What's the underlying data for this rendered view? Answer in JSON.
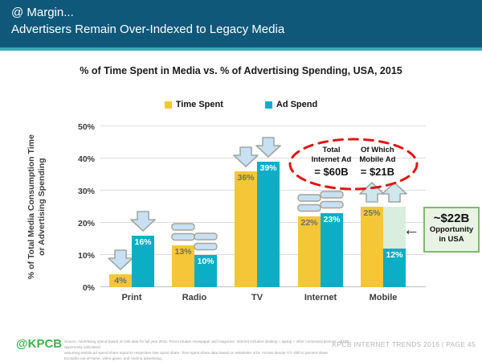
{
  "header": {
    "line1": "@ Margin...",
    "line2": "Advertisers Remain Over-Indexed to Legacy Media"
  },
  "chart_data": {
    "type": "bar",
    "title": "% of Time Spent in Media vs. % of Advertising Spending, USA, 2015",
    "ylabel_line1": "% of Total Media Consumption Time",
    "ylabel_line2": "or Advertising Spending",
    "ylim": [
      0,
      50
    ],
    "yticks": [
      "0%",
      "10%",
      "20%",
      "30%",
      "40%",
      "50%"
    ],
    "grid": true,
    "legend_position": "top-center",
    "categories": [
      "Print",
      "Radio",
      "TV",
      "Internet",
      "Mobile"
    ],
    "series": [
      {
        "name": "Time Spent",
        "color": "#F5C637",
        "label_color": "#6E6E6E",
        "values": [
          4,
          13,
          36,
          22,
          25
        ],
        "labels": [
          "4%",
          "13%",
          "36%",
          "22%",
          "25%"
        ]
      },
      {
        "name": "Ad Spend",
        "color": "#0CAEC5",
        "label_color": "#FFFFFF",
        "values": [
          16,
          10,
          39,
          23,
          12
        ],
        "labels": [
          "16%",
          "10%",
          "39%",
          "23%",
          "12%"
        ]
      }
    ],
    "yoy_trends": [
      [
        "down",
        "down"
      ],
      [
        "equal",
        "equal"
      ],
      [
        "down",
        "down"
      ],
      [
        "equal",
        "equal"
      ],
      [
        "up",
        "up"
      ]
    ],
    "mobile_opportunity_extension": {
      "category": "Mobile",
      "from": 12,
      "to": 25,
      "color": "#D9EEDF"
    },
    "annotations": {
      "internet_ad_oval": {
        "border_color": "#E01616",
        "columns": [
          {
            "line1": "Total",
            "line2": "Internet Ad",
            "value": "= $60B"
          },
          {
            "line1": "Of Which",
            "line2": "Mobile Ad",
            "value": "= $21B"
          }
        ]
      },
      "opportunity_box": {
        "line1": "~$22B",
        "line2": "Opportunity",
        "line3": "in USA",
        "fill": "#E8F3E3",
        "border_color": "#7FB96F",
        "arrow": "←"
      }
    }
  },
  "footer": {
    "logo": "@KPCB",
    "source_lines": [
      "Source: Advertising spend based on IAB data for full year 2015. Print includes newspaper and magazine. Internet includes desktop + laptop + other connected devices. ~$22B opportunity calculated",
      "assuming Mobile ad spend share equal its respective time spent share. Time spent share data based on eMarketer 4/16. Arrows denote Y/Y shift in percent share.",
      "Excludes out-of-home, video game, and cinema advertising."
    ],
    "right_text": "KPCB INTERNET TRENDS 2016   |   PAGE 45"
  }
}
